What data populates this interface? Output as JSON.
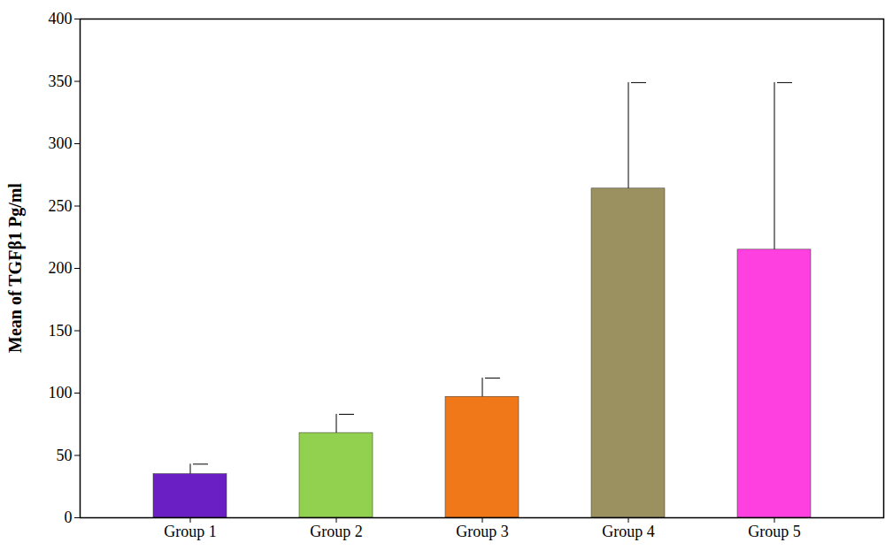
{
  "chart_data": {
    "type": "bar",
    "y_label": "Mean of TGFβ1 Pg/ml",
    "categories": [
      "Group 1",
      "Group 2",
      "Group 3",
      "Group 4",
      "Group 5"
    ],
    "values": [
      35,
      68,
      97,
      264,
      215
    ],
    "errors": [
      8,
      15,
      15,
      85,
      134
    ],
    "colors": [
      "#6a1fc4",
      "#92d050",
      "#f07818",
      "#9a9060",
      "#ff40e0"
    ],
    "ylim": [
      0,
      400
    ],
    "yticks": [
      0,
      50,
      100,
      150,
      200,
      250,
      300,
      350,
      400
    ],
    "grid": false
  }
}
